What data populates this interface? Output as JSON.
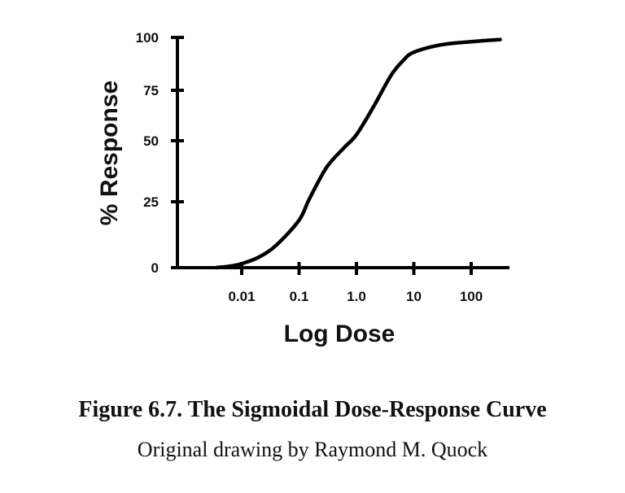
{
  "chart_data": {
    "type": "line",
    "title": "Figure 6.7. The Sigmoidal Dose-Response Curve",
    "subtitle": "Original drawing by Raymond M. Quock",
    "xlabel": "Log Dose",
    "ylabel": "% Response",
    "x_scale": "log10",
    "x_ticks": [
      {
        "value": 0.01,
        "label": "0.01"
      },
      {
        "value": 0.1,
        "label": "0.1"
      },
      {
        "value": 1.0,
        "label": "1.0"
      },
      {
        "value": 10,
        "label": "10"
      },
      {
        "value": 100,
        "label": "100"
      }
    ],
    "y_ticks": [
      {
        "value": 0,
        "label": "0"
      },
      {
        "value": 25,
        "label": "25"
      },
      {
        "value": 50,
        "label": "50"
      },
      {
        "value": 75,
        "label": "75"
      },
      {
        "value": 100,
        "label": "100"
      }
    ],
    "xlim": [
      0.0015,
      400
    ],
    "ylim": [
      0,
      100
    ],
    "grid": false,
    "legend": null,
    "series": [
      {
        "name": "Dose-Response",
        "color": "#000000",
        "points": [
          {
            "x": 0.0036,
            "y": 0
          },
          {
            "x": 0.006,
            "y": 0.5
          },
          {
            "x": 0.01,
            "y": 1.5
          },
          {
            "x": 0.02,
            "y": 4
          },
          {
            "x": 0.04,
            "y": 8.5
          },
          {
            "x": 0.1,
            "y": 18
          },
          {
            "x": 0.15,
            "y": 26
          },
          {
            "x": 0.3,
            "y": 39
          },
          {
            "x": 0.6,
            "y": 47
          },
          {
            "x": 1.0,
            "y": 53
          },
          {
            "x": 2.0,
            "y": 67
          },
          {
            "x": 4.0,
            "y": 82
          },
          {
            "x": 6.5,
            "y": 89
          },
          {
            "x": 10,
            "y": 93
          },
          {
            "x": 30,
            "y": 96.5
          },
          {
            "x": 100,
            "y": 98
          },
          {
            "x": 320,
            "y": 99
          }
        ]
      }
    ]
  },
  "caption": {
    "title": "Figure 6.7. The Sigmoidal Dose-Response Curve",
    "credit": "Original drawing by Raymond M. Quock"
  }
}
